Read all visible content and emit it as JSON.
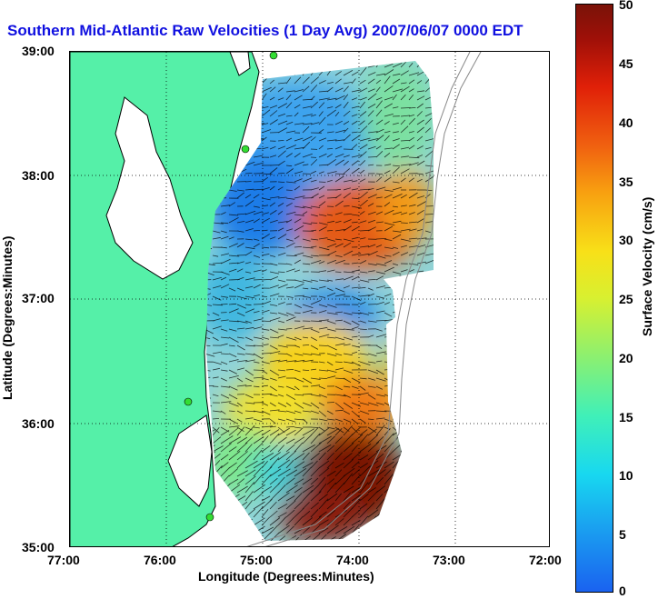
{
  "title": "Southern Mid-Atlantic Raw Velocities (1 Day Avg) 2007/06/07 0000 EDT",
  "axes": {
    "xlabel": "Longitude (Degrees:Minutes)",
    "ylabel": "Latitude (Degrees:Minutes)",
    "xticks": [
      "77:00",
      "76:00",
      "75:00",
      "74:00",
      "73:00",
      "72:00"
    ],
    "yticks": [
      "39:00",
      "38:00",
      "37:00",
      "36:00",
      "35:00"
    ]
  },
  "colorbar": {
    "label": "Surface Velocity (cm/s)",
    "ticks": [
      "50",
      "45",
      "40",
      "35",
      "30",
      "25",
      "20",
      "15",
      "10",
      "5",
      "0"
    ],
    "min": 0,
    "max": 50
  },
  "colors": {
    "land": "#55f0a8",
    "coast_line": "#000000",
    "title": "#1010e0",
    "station": "#33dd33"
  }
}
